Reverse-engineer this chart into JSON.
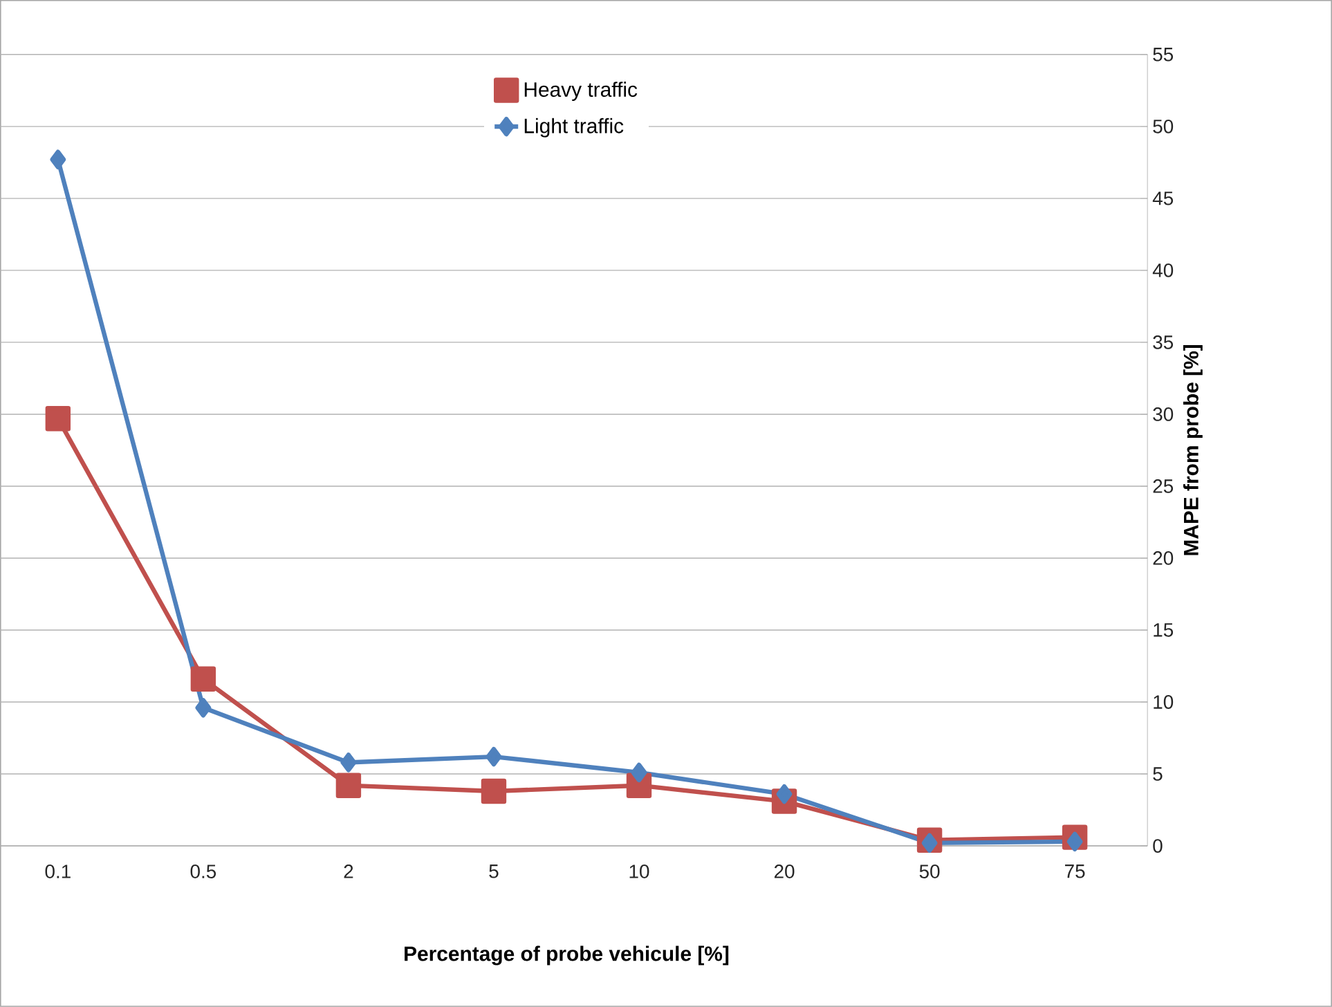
{
  "chart_data": {
    "type": "line",
    "xlabel": "Percentage of probe vehicule [%]",
    "ylabel": "MAPE from probe [%]",
    "categories": [
      "0.1",
      "0.5",
      "2",
      "5",
      "10",
      "20",
      "50",
      "75"
    ],
    "series": [
      {
        "name": "Heavy traffic",
        "color": "#c0504d",
        "marker": "square",
        "values": [
          29.7,
          11.6,
          4.2,
          3.8,
          4.2,
          3.1,
          0.4,
          0.6
        ]
      },
      {
        "name": "Light traffic",
        "color": "#4f81bd",
        "marker": "diamond",
        "values": [
          47.7,
          9.6,
          5.8,
          6.2,
          5.1,
          3.6,
          0.2,
          0.3
        ]
      }
    ],
    "ylim": [
      0,
      55
    ],
    "yticks": [
      0,
      5,
      10,
      15,
      20,
      25,
      30,
      35,
      40,
      45,
      50,
      55
    ],
    "grid": "y",
    "legend": "top",
    "line_style": "solid"
  }
}
